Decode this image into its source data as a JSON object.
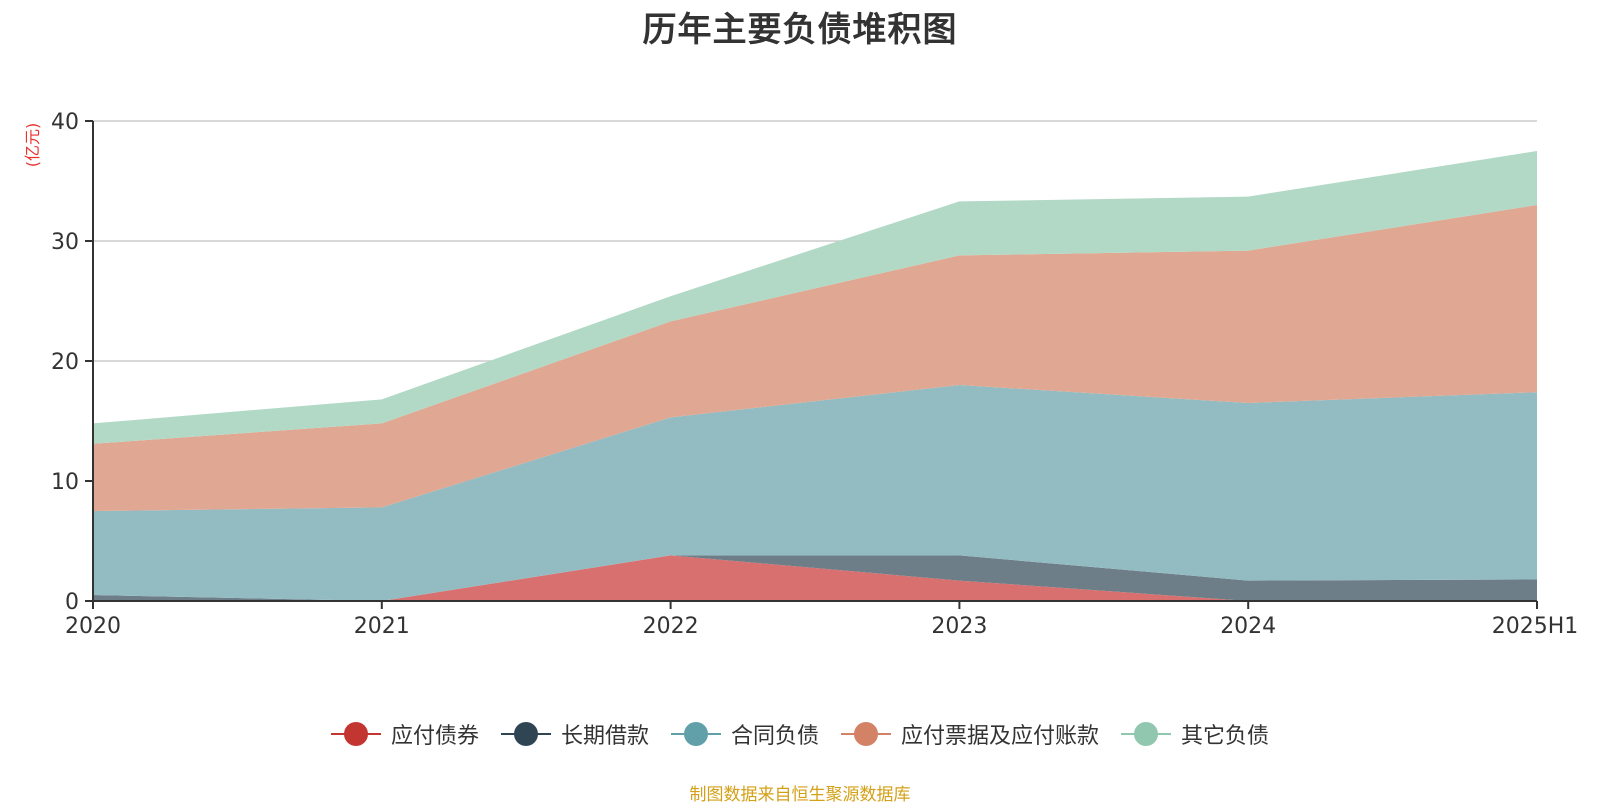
{
  "title": "历年主要负债堆积图",
  "source": "制图数据来自恒生聚源数据库",
  "colors": {
    "axis": "#333333",
    "grid": "#cccccc",
    "unit": "#e8332f",
    "source": "#d4a017"
  },
  "chart_data": {
    "type": "area",
    "stacked": true,
    "title": "历年主要负债堆积图",
    "ylabel": "(亿元)",
    "xlabel": "",
    "categories": [
      "2020",
      "2021",
      "2022",
      "2023",
      "2024",
      "2025H1"
    ],
    "ylim": [
      0,
      40
    ],
    "yticks": [
      0,
      10,
      20,
      30,
      40
    ],
    "grid": true,
    "legend_position": "bottom",
    "series": [
      {
        "name": "应付债券",
        "color": "#c23531",
        "fill": "#d7706e",
        "values": [
          0,
          0,
          3.8,
          1.7,
          0,
          0
        ]
      },
      {
        "name": "长期借款",
        "color": "#2f4554",
        "fill": "#6e7e88",
        "values": [
          0.5,
          0,
          0,
          2.1,
          1.7,
          1.8
        ]
      },
      {
        "name": "合同负债",
        "color": "#61a0a8",
        "fill": "#93bcc2",
        "values": [
          7.0,
          7.8,
          11.5,
          14.2,
          14.8,
          15.6
        ]
      },
      {
        "name": "应付票据及应付账款",
        "color": "#d48265",
        "fill": "#e0a792",
        "values": [
          5.6,
          7.0,
          8.0,
          10.8,
          12.7,
          15.6
        ]
      },
      {
        "name": "其它负债",
        "color": "#91c7ae",
        "fill": "#b2d9c6",
        "values": [
          1.7,
          2.0,
          2.1,
          4.5,
          4.5,
          4.5
        ]
      }
    ]
  }
}
